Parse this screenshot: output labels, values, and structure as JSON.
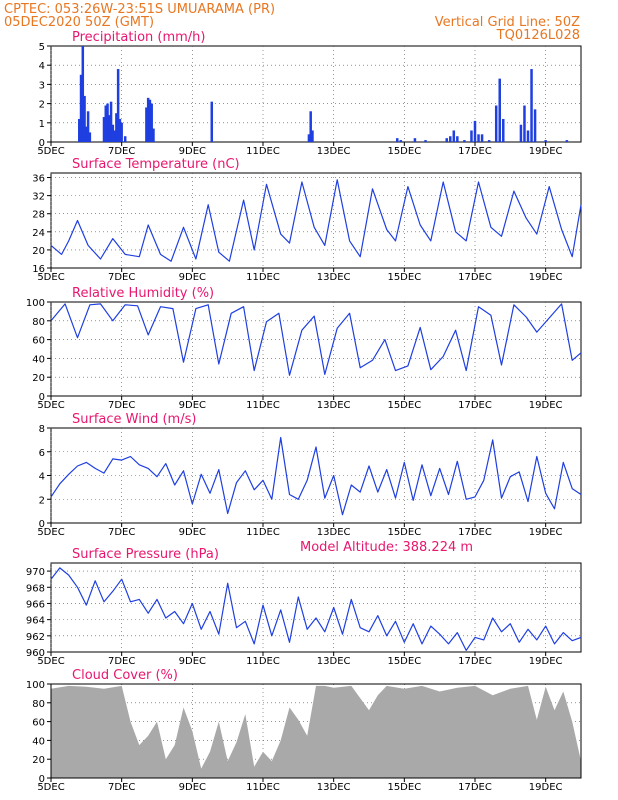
{
  "header": {
    "line1_left": "CPTEC:   053:26W-23:51S   UMUARAMA (PR)",
    "line2_left": "05DEC2020 50Z (GMT)",
    "line1_right": "Vertical Grid Line: 50Z",
    "line2_right": "TQ0126L028",
    "model_altitude": "Model Altitude: 388.224 m"
  },
  "colors": {
    "header": "#e87722",
    "panel_title": "#e8176f",
    "series": "#1f3fe0",
    "cloud": "#a9a9a9",
    "grid": "#555555"
  },
  "x_axis": {
    "tick_labels": [
      "5DEC",
      "7DEC",
      "9DEC",
      "11DEC",
      "13DEC",
      "15DEC",
      "17DEC",
      "19DEC"
    ],
    "tick_days": [
      5,
      7,
      9,
      11,
      13,
      15,
      17,
      19
    ],
    "range_days": [
      5,
      20
    ]
  },
  "chart_data": [
    {
      "type": "bar",
      "title": "Precipitation (mm/h)",
      "ylim": [
        0,
        5
      ],
      "yticks": [
        "0",
        "1",
        "2",
        "3",
        "4",
        "5"
      ],
      "x": [
        5.8,
        5.85,
        5.9,
        5.95,
        6.0,
        6.05,
        6.1,
        6.5,
        6.55,
        6.6,
        6.65,
        6.7,
        6.75,
        6.8,
        6.85,
        6.9,
        6.95,
        7.0,
        7.1,
        7.7,
        7.75,
        7.8,
        7.85,
        7.9,
        9.55,
        12.3,
        12.35,
        12.4,
        14.8,
        14.9,
        15.3,
        15.6,
        16.2,
        16.3,
        16.4,
        16.5,
        16.7,
        16.9,
        17.0,
        17.1,
        17.2,
        17.4,
        17.6,
        17.7,
        17.8,
        18.3,
        18.4,
        18.5,
        18.6,
        18.7,
        19.0,
        19.6
      ],
      "values": [
        1.2,
        3.5,
        5.0,
        2.4,
        0.8,
        1.6,
        0.5,
        1.3,
        1.9,
        2.0,
        1.4,
        2.1,
        0.9,
        0.6,
        1.5,
        3.8,
        1.2,
        1.0,
        0.3,
        1.8,
        2.3,
        2.2,
        2.0,
        0.7,
        2.1,
        0.4,
        1.6,
        0.6,
        0.2,
        0.1,
        0.2,
        0.1,
        0.2,
        0.3,
        0.6,
        0.3,
        0.1,
        0.6,
        1.1,
        0.4,
        0.4,
        0.1,
        1.9,
        3.3,
        1.2,
        0.9,
        1.9,
        0.6,
        3.8,
        1.7,
        0.1,
        0.1
      ]
    },
    {
      "type": "line",
      "title": "Surface Temperature (nC)",
      "ylim": [
        16,
        37
      ],
      "yticks": [
        "16",
        "20",
        "24",
        "28",
        "32",
        "36"
      ],
      "x": [
        5.0,
        5.3,
        5.5,
        5.75,
        6.05,
        6.4,
        6.75,
        7.1,
        7.5,
        7.75,
        8.1,
        8.4,
        8.75,
        9.1,
        9.45,
        9.75,
        10.05,
        10.45,
        10.75,
        11.1,
        11.5,
        11.75,
        12.1,
        12.45,
        12.75,
        13.1,
        13.45,
        13.75,
        14.1,
        14.5,
        14.75,
        15.1,
        15.45,
        15.75,
        16.1,
        16.45,
        16.75,
        17.1,
        17.45,
        17.75,
        18.1,
        18.45,
        18.75,
        19.1,
        19.45,
        19.75,
        20.0
      ],
      "values": [
        21,
        19,
        22,
        26.5,
        21,
        18,
        22.5,
        19,
        18.5,
        25.5,
        19,
        17.5,
        25,
        18,
        30,
        19.5,
        17.5,
        31,
        20,
        34.5,
        23.5,
        21.5,
        35,
        25,
        21,
        35.5,
        22,
        18.5,
        33.5,
        24.5,
        22,
        34,
        25.5,
        22,
        35,
        24,
        22,
        35,
        25,
        23,
        33,
        27,
        23.5,
        34,
        24.5,
        18.5,
        30
      ]
    },
    {
      "type": "line",
      "title": "Relative Humidity (%)",
      "ylim": [
        0,
        100
      ],
      "yticks": [
        "0",
        "20",
        "40",
        "60",
        "80",
        "100"
      ],
      "x": [
        5.0,
        5.4,
        5.75,
        6.1,
        6.4,
        6.75,
        7.1,
        7.45,
        7.75,
        8.1,
        8.45,
        8.75,
        9.1,
        9.45,
        9.75,
        10.1,
        10.45,
        10.75,
        11.1,
        11.45,
        11.75,
        12.1,
        12.45,
        12.75,
        13.1,
        13.45,
        13.75,
        14.1,
        14.45,
        14.75,
        15.1,
        15.45,
        15.75,
        16.1,
        16.45,
        16.75,
        17.1,
        17.45,
        17.75,
        18.1,
        18.45,
        18.75,
        19.1,
        19.45,
        19.75,
        20.0
      ],
      "values": [
        80,
        98,
        62,
        97,
        98,
        80,
        97,
        96,
        65,
        95,
        93,
        36,
        93,
        97,
        34,
        88,
        95,
        27,
        79,
        88,
        22,
        70,
        85,
        23,
        72,
        88,
        30,
        38,
        60,
        27,
        32,
        73,
        28,
        42,
        70,
        27,
        95,
        86,
        33,
        97,
        84,
        68,
        83,
        98,
        38,
        46
      ]
    },
    {
      "type": "line",
      "title": "Surface Wind (m/s)",
      "ylim": [
        0,
        8
      ],
      "yticks": [
        "0",
        "2",
        "4",
        "6",
        "8"
      ],
      "x": [
        5.0,
        5.25,
        5.5,
        5.75,
        6.0,
        6.25,
        6.5,
        6.75,
        7.0,
        7.25,
        7.5,
        7.75,
        8.0,
        8.25,
        8.5,
        8.75,
        9.0,
        9.25,
        9.5,
        9.75,
        10.0,
        10.25,
        10.5,
        10.75,
        11.0,
        11.25,
        11.5,
        11.75,
        12.0,
        12.25,
        12.5,
        12.75,
        13.0,
        13.25,
        13.5,
        13.75,
        14.0,
        14.25,
        14.5,
        14.75,
        15.0,
        15.25,
        15.5,
        15.75,
        16.0,
        16.25,
        16.5,
        16.75,
        17.0,
        17.25,
        17.5,
        17.75,
        18.0,
        18.25,
        18.5,
        18.75,
        19.0,
        19.25,
        19.5,
        19.75,
        20.0
      ],
      "values": [
        2.2,
        3.3,
        4.1,
        4.8,
        5.1,
        4.6,
        4.2,
        5.4,
        5.3,
        5.6,
        4.9,
        4.6,
        3.9,
        5.0,
        3.2,
        4.4,
        1.6,
        4.1,
        2.5,
        4.5,
        0.8,
        3.4,
        4.4,
        2.8,
        3.6,
        2.0,
        7.2,
        2.4,
        2.0,
        3.6,
        6.4,
        2.1,
        4.0,
        0.7,
        3.2,
        2.6,
        4.8,
        2.6,
        4.5,
        2.1,
        5.1,
        1.9,
        4.9,
        2.3,
        4.6,
        2.4,
        5.2,
        2.0,
        2.2,
        3.6,
        7.0,
        2.1,
        3.9,
        4.3,
        1.8,
        5.6,
        2.5,
        1.2,
        5.1,
        2.9,
        2.4
      ]
    },
    {
      "type": "line",
      "title": "Surface Pressure (hPa)",
      "ylim": [
        960,
        971
      ],
      "yticks": [
        "960",
        "962",
        "964",
        "966",
        "968",
        "970"
      ],
      "x": [
        5.0,
        5.25,
        5.5,
        5.75,
        6.0,
        6.25,
        6.5,
        6.75,
        7.0,
        7.25,
        7.5,
        7.75,
        8.0,
        8.25,
        8.5,
        8.75,
        9.0,
        9.25,
        9.5,
        9.75,
        10.0,
        10.25,
        10.5,
        10.75,
        11.0,
        11.25,
        11.5,
        11.75,
        12.0,
        12.25,
        12.5,
        12.75,
        13.0,
        13.25,
        13.5,
        13.75,
        14.0,
        14.25,
        14.5,
        14.75,
        15.0,
        15.25,
        15.5,
        15.75,
        16.0,
        16.25,
        16.5,
        16.75,
        17.0,
        17.25,
        17.5,
        17.75,
        18.0,
        18.25,
        18.5,
        18.75,
        19.0,
        19.25,
        19.5,
        19.75,
        20.0
      ],
      "values": [
        969,
        970.4,
        969.5,
        968.0,
        965.8,
        968.8,
        966.2,
        967.5,
        969.0,
        966.2,
        966.5,
        964.8,
        966.5,
        964.2,
        965.0,
        963.5,
        966.0,
        962.8,
        965.0,
        962.2,
        968.5,
        963.0,
        963.8,
        961.0,
        965.8,
        962.0,
        965.2,
        961.2,
        966.8,
        962.8,
        964.2,
        962.5,
        965.5,
        962.2,
        966.5,
        963.0,
        962.5,
        964.5,
        962.0,
        963.8,
        961.2,
        963.5,
        961.0,
        963.2,
        962.2,
        961.0,
        962.4,
        960.2,
        961.8,
        961.5,
        964.2,
        962.5,
        963.5,
        961.2,
        962.8,
        961.5,
        963.2,
        961.0,
        962.4,
        961.4,
        961.8
      ]
    },
    {
      "type": "area",
      "title": "Cloud Cover (%)",
      "ylim": [
        0,
        100
      ],
      "yticks": [
        "0",
        "20",
        "40",
        "60",
        "80",
        "100"
      ],
      "x": [
        5.0,
        5.5,
        6.0,
        6.5,
        7.0,
        7.25,
        7.5,
        7.75,
        8.0,
        8.25,
        8.5,
        8.75,
        9.0,
        9.25,
        9.5,
        9.75,
        10.0,
        10.25,
        10.5,
        10.75,
        11.0,
        11.25,
        11.5,
        11.75,
        12.0,
        12.25,
        12.5,
        12.75,
        13.0,
        13.5,
        14.0,
        14.25,
        14.5,
        15.0,
        15.5,
        16.0,
        16.5,
        17.0,
        17.5,
        18.0,
        18.5,
        18.75,
        19.0,
        19.25,
        19.5,
        19.75,
        20.0
      ],
      "values": [
        95,
        98,
        97,
        95,
        98,
        60,
        35,
        45,
        60,
        20,
        35,
        75,
        50,
        10,
        28,
        60,
        18,
        38,
        68,
        12,
        28,
        18,
        40,
        75,
        62,
        45,
        98,
        98,
        96,
        98,
        72,
        88,
        98,
        95,
        98,
        92,
        96,
        98,
        88,
        95,
        98,
        62,
        97,
        72,
        92,
        60,
        18
      ]
    }
  ]
}
